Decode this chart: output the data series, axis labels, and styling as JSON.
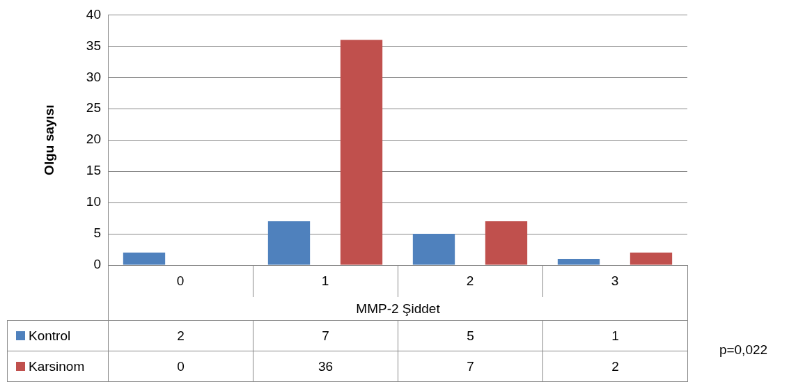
{
  "chart_data": {
    "type": "bar",
    "xlabel": "MMP-2 Şiddet",
    "ylabel": "Olgu sayısı",
    "categories": [
      "0",
      "1",
      "2",
      "3"
    ],
    "series": [
      {
        "name": "Kontrol",
        "color": "#4f81bd",
        "values": [
          2,
          7,
          5,
          1
        ]
      },
      {
        "name": "Karsinom",
        "color": "#c0504d",
        "values": [
          0,
          36,
          7,
          2
        ]
      }
    ],
    "ylim": [
      0,
      40
    ],
    "yticks": [
      0,
      5,
      10,
      15,
      20,
      25,
      30,
      35,
      40
    ],
    "grid": "y",
    "legend": "bottom",
    "data_labels": true,
    "annotations": [
      "p=0,022"
    ]
  }
}
